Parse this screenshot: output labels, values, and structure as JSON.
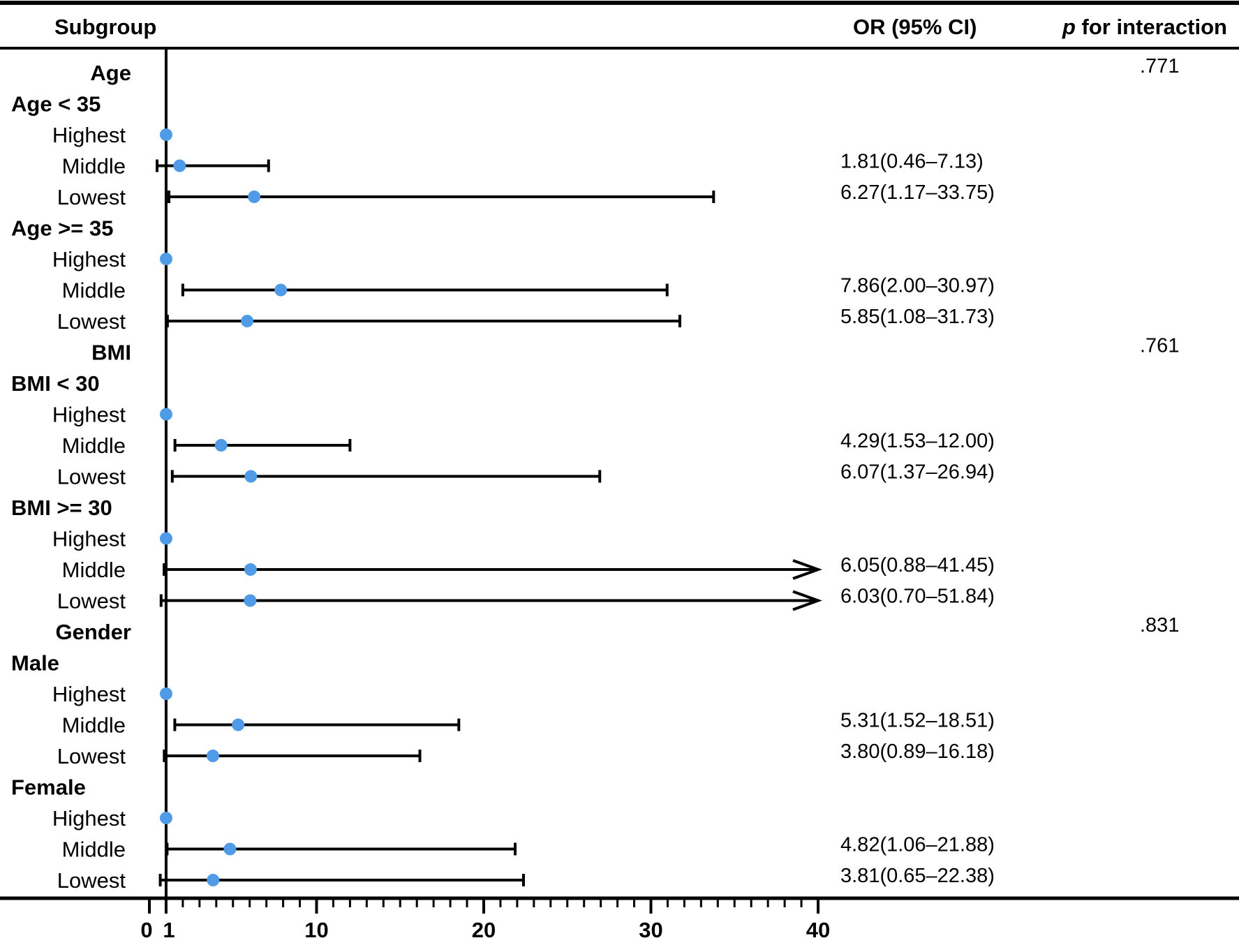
{
  "chart_data": {
    "type": "forest",
    "headers": {
      "subgroup": "Subgroup",
      "or": "OR (95% CI)",
      "p_italic": "p",
      "p_rest": " for interaction"
    },
    "reference_value": 1,
    "xlim": [
      0,
      40
    ],
    "x_ticks": [
      0,
      1,
      10,
      20,
      30,
      40
    ],
    "x_tick_labels": [
      "0",
      "1",
      "10",
      "20",
      "30",
      "40"
    ],
    "marker_color": "#4f9be8",
    "rows": [
      {
        "kind": "variable",
        "label": "Age",
        "p": ".771"
      },
      {
        "kind": "group",
        "label": "Age < 35"
      },
      {
        "kind": "level",
        "label": "Highest",
        "or": 1
      },
      {
        "kind": "level",
        "label": "Middle",
        "or": 1.81,
        "lo": 0.46,
        "hi": 7.13,
        "text": "1.81(0.46–7.13)"
      },
      {
        "kind": "level",
        "label": "Lowest",
        "or": 6.27,
        "lo": 1.17,
        "hi": 33.75,
        "text": "6.27(1.17–33.75)"
      },
      {
        "kind": "group",
        "label": "Age >= 35"
      },
      {
        "kind": "level",
        "label": "Highest",
        "or": 1
      },
      {
        "kind": "level",
        "label": "Middle",
        "or": 7.86,
        "lo": 2.0,
        "hi": 30.97,
        "text": "7.86(2.00–30.97)"
      },
      {
        "kind": "level",
        "label": "Lowest",
        "or": 5.85,
        "lo": 1.08,
        "hi": 31.73,
        "text": "5.85(1.08–31.73)"
      },
      {
        "kind": "variable",
        "label": "BMI",
        "p": ".761"
      },
      {
        "kind": "group",
        "label": "BMI < 30"
      },
      {
        "kind": "level",
        "label": "Highest",
        "or": 1
      },
      {
        "kind": "level",
        "label": "Middle",
        "or": 4.29,
        "lo": 1.53,
        "hi": 12.0,
        "text": "4.29(1.53–12.00)"
      },
      {
        "kind": "level",
        "label": "Lowest",
        "or": 6.07,
        "lo": 1.37,
        "hi": 26.94,
        "text": "6.07(1.37–26.94)"
      },
      {
        "kind": "group",
        "label": "BMI >= 30"
      },
      {
        "kind": "level",
        "label": "Highest",
        "or": 1
      },
      {
        "kind": "level",
        "label": "Middle",
        "or": 6.05,
        "lo": 0.88,
        "hi": 41.45,
        "text": "6.05(0.88–41.45)"
      },
      {
        "kind": "level",
        "label": "Lowest",
        "or": 6.03,
        "lo": 0.7,
        "hi": 51.84,
        "text": "6.03(0.70–51.84)"
      },
      {
        "kind": "variable",
        "label": "Gender",
        "p": ".831"
      },
      {
        "kind": "group",
        "label": "Male"
      },
      {
        "kind": "level",
        "label": "Highest",
        "or": 1
      },
      {
        "kind": "level",
        "label": "Middle",
        "or": 5.31,
        "lo": 1.52,
        "hi": 18.51,
        "text": "5.31(1.52–18.51)"
      },
      {
        "kind": "level",
        "label": "Lowest",
        "or": 3.8,
        "lo": 0.89,
        "hi": 16.18,
        "text": "3.80(0.89–16.18)"
      },
      {
        "kind": "group",
        "label": "Female"
      },
      {
        "kind": "level",
        "label": "Highest",
        "or": 1
      },
      {
        "kind": "level",
        "label": "Middle",
        "or": 4.82,
        "lo": 1.06,
        "hi": 21.88,
        "text": "4.82(1.06–21.88)"
      },
      {
        "kind": "level",
        "label": "Lowest",
        "or": 3.81,
        "lo": 0.65,
        "hi": 22.38,
        "text": "3.81(0.65–22.38)"
      }
    ]
  }
}
